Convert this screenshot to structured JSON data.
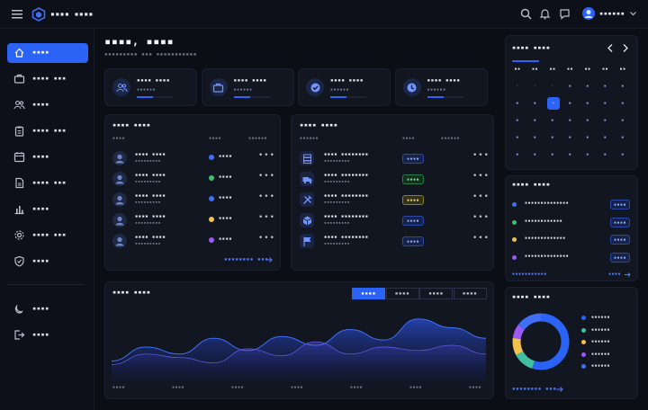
{
  "header": {
    "app_title": "▪▪▪▪ ▪▪▪▪",
    "user_name": "▪▪▪▪▪▪"
  },
  "sidebar": {
    "items": [
      {
        "label": "▪▪▪▪",
        "icon": "home-icon"
      },
      {
        "label": "▪▪▪▪ ▪▪▪",
        "icon": "briefcase-icon"
      },
      {
        "label": "▪▪▪▪",
        "icon": "users-icon"
      },
      {
        "label": "▪▪▪▪ ▪▪▪",
        "icon": "clipboard-icon"
      },
      {
        "label": "▪▪▪▪",
        "icon": "calendar-icon"
      },
      {
        "label": "▪▪▪▪ ▪▪▪",
        "icon": "document-icon"
      },
      {
        "label": "▪▪▪▪",
        "icon": "bar-chart-icon"
      },
      {
        "label": "▪▪▪▪ ▪▪▪",
        "icon": "gear-icon"
      },
      {
        "label": "▪▪▪▪",
        "icon": "shield-icon"
      }
    ],
    "bottom": [
      {
        "label": "▪▪▪▪",
        "icon": "moon-icon"
      },
      {
        "label": "▪▪▪▪",
        "icon": "logout-icon"
      }
    ]
  },
  "greeting": {
    "title": "▪▪▪▪, ▪▪▪▪",
    "subtitle": "▪▪▪▪▪▪▪▪▪ ▪▪▪ ▪▪▪▪▪▪▪▪▪▪▪"
  },
  "stats": [
    {
      "label": "▪▪▪▪ ▪▪▪▪",
      "value": "▪▪▪▪▪▪",
      "icon": "users-icon",
      "progress": 0.45
    },
    {
      "label": "▪▪▪▪ ▪▪▪▪",
      "value": "▪▪▪▪▪▪",
      "icon": "briefcase-icon",
      "progress": 0.45
    },
    {
      "label": "▪▪▪▪ ▪▪▪▪",
      "value": "▪▪▪▪▪▪",
      "icon": "check-circle-icon",
      "progress": 0.45
    },
    {
      "label": "▪▪▪▪ ▪▪▪▪",
      "value": "▪▪▪▪▪▪",
      "icon": "clock-icon",
      "progress": 0.45
    }
  ],
  "people_panel": {
    "title": "▪▪▪▪ ▪▪▪▪",
    "columns": [
      "▪▪▪▪",
      "▪▪▪▪",
      "▪▪▪▪▪▪"
    ],
    "rows": [
      {
        "name": "▪▪▪▪ ▪▪▪▪",
        "sub": "▪▪▪▪▪▪▪▪▪",
        "status": "▪▪▪▪",
        "color": "#3f6ff5"
      },
      {
        "name": "▪▪▪▪ ▪▪▪▪",
        "sub": "▪▪▪▪▪▪▪▪▪",
        "status": "▪▪▪▪",
        "color": "#3fbf6a"
      },
      {
        "name": "▪▪▪▪ ▪▪▪▪",
        "sub": "▪▪▪▪▪▪▪▪▪",
        "status": "▪▪▪▪",
        "color": "#3f6ff5"
      },
      {
        "name": "▪▪▪▪ ▪▪▪▪",
        "sub": "▪▪▪▪▪▪▪▪▪",
        "status": "▪▪▪▪",
        "color": "#f2c14e"
      },
      {
        "name": "▪▪▪▪ ▪▪▪▪",
        "sub": "▪▪▪▪▪▪▪▪▪",
        "status": "▪▪▪▪",
        "color": "#9b59f5"
      }
    ],
    "link": "▪▪▪▪▪▪▪▪ ▪▪▪"
  },
  "tasks_panel": {
    "title": "▪▪▪▪ ▪▪▪▪",
    "columns": [
      "▪▪▪▪▪▪",
      "▪▪▪▪",
      "▪▪▪▪▪▪"
    ],
    "rows": [
      {
        "name": "▪▪▪▪ ▪▪▪▪▪▪▪▪",
        "sub": "▪▪▪▪▪▪▪▪▪",
        "badge": "▪▪▪▪",
        "tone": "blue",
        "icon": "server-icon"
      },
      {
        "name": "▪▪▪▪ ▪▪▪▪▪▪▪▪",
        "sub": "▪▪▪▪▪▪▪▪▪",
        "badge": "▪▪▪▪",
        "tone": "green",
        "icon": "truck-icon"
      },
      {
        "name": "▪▪▪▪ ▪▪▪▪▪▪▪▪",
        "sub": "▪▪▪▪▪▪▪▪▪",
        "badge": "▪▪▪▪",
        "tone": "yellow",
        "icon": "tools-icon"
      },
      {
        "name": "▪▪▪▪ ▪▪▪▪▪▪▪▪",
        "sub": "▪▪▪▪▪▪▪▪▪",
        "badge": "▪▪▪▪",
        "tone": "blue",
        "icon": "box-icon"
      },
      {
        "name": "▪▪▪▪ ▪▪▪▪▪▪▪▪",
        "sub": "▪▪▪▪▪▪▪▪▪",
        "badge": "▪▪▪▪",
        "tone": "blue",
        "icon": "flag-icon"
      }
    ]
  },
  "overview": {
    "title": "▪▪▪▪ ▪▪▪▪",
    "tabs": [
      "▪▪▪▪",
      "▪▪▪▪",
      "▪▪▪▪",
      "▪▪▪▪"
    ],
    "x_labels": [
      "▪▪▪▪",
      "▪▪▪▪",
      "▪▪▪▪",
      "▪▪▪▪",
      "▪▪▪▪",
      "▪▪▪▪",
      "▪▪▪▪"
    ],
    "series_front": [
      22,
      38,
      30,
      48,
      34,
      50,
      40,
      58,
      46,
      70,
      60,
      48
    ],
    "series_back": [
      18,
      30,
      26,
      20,
      36,
      28,
      44,
      30,
      38,
      34,
      40,
      30
    ]
  },
  "calendar": {
    "title": "▪▪▪▪ ▪▪▪▪",
    "weekdays": [
      "▪▪",
      "▪▪",
      "▪▪",
      "▪▪",
      "▪▪",
      "▪▪",
      "▪▪"
    ],
    "days": [
      [
        "·",
        "·",
        "·",
        "▪",
        "▪",
        "▪",
        "▪"
      ],
      [
        "▪",
        "▪",
        "▪",
        "▪",
        "▪",
        "▪",
        "▪"
      ],
      [
        "▪",
        "▪",
        "▪",
        "▪",
        "▪",
        "▪",
        "▪"
      ],
      [
        "▪",
        "▪",
        "▪",
        "▪",
        "▪",
        "▪",
        "▪"
      ],
      [
        "▪",
        "▪",
        "▪",
        "▪",
        "▪",
        "▪",
        "▪"
      ]
    ]
  },
  "schedule": {
    "title": "▪▪▪▪ ▪▪▪▪",
    "items": [
      {
        "text": "▪▪▪▪▪▪▪▪▪▪▪▪▪▪",
        "time": "▪▪▪▪",
        "color": "#3f6ff5"
      },
      {
        "text": "▪▪▪▪▪▪▪▪▪▪▪▪",
        "time": "▪▪▪▪",
        "color": "#3fbf6a"
      },
      {
        "text": "▪▪▪▪▪▪▪▪▪▪▪▪▪",
        "time": "▪▪▪▪",
        "color": "#f2c14e"
      },
      {
        "text": "▪▪▪▪▪▪▪▪▪▪▪▪▪▪",
        "time": "▪▪▪▪",
        "color": "#9b59f5"
      }
    ],
    "link_left": "▪▪▪▪▪▪▪▪▪▪▪",
    "link_right": "▪▪▪▪"
  },
  "donut": {
    "title": "▪▪▪▪ ▪▪▪▪",
    "segments": [
      {
        "label": "▪▪▪▪▪▪",
        "value": 55,
        "color": "#2a63f5"
      },
      {
        "label": "▪▪▪▪▪▪",
        "value": 12,
        "color": "#3fbfa0"
      },
      {
        "label": "▪▪▪▪▪▪",
        "value": 10,
        "color": "#f2c14e"
      },
      {
        "label": "▪▪▪▪▪▪",
        "value": 8,
        "color": "#9b59f5"
      },
      {
        "label": "▪▪▪▪▪▪",
        "value": 15,
        "color": "#3f6ff5"
      }
    ],
    "link": "▪▪▪▪▪▪▪▪ ▪▪▪"
  }
}
